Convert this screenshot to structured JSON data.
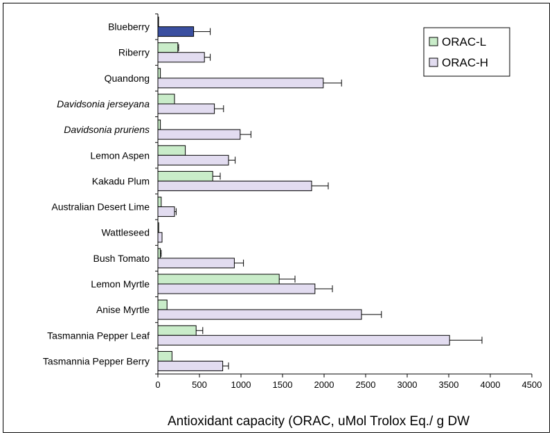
{
  "chart_data": {
    "type": "bar",
    "orientation": "horizontal",
    "categories": [
      "Blueberry",
      "Riberry",
      "Quandong",
      "Davidsonia jerseyana",
      "Davidsonia pruriens",
      "Lemon Aspen",
      "Kakadu Plum",
      "Australian Desert Lime",
      "Wattleseed",
      "Bush Tomato",
      "Lemon Myrtle",
      "Anise Myrtle",
      "Tasmannia Pepper Leaf",
      "Tasmannia Pepper Berry"
    ],
    "italic_categories": [
      "Davidsonia jerseyana",
      "Davidsonia pruriens"
    ],
    "series": [
      {
        "name": "ORAC-L",
        "color": "#c9ecc9",
        "values": [
          5,
          240,
          30,
          200,
          30,
          330,
          660,
          40,
          10,
          30,
          1460,
          110,
          460,
          170
        ],
        "errors": [
          0,
          10,
          0,
          0,
          0,
          0,
          90,
          0,
          0,
          10,
          190,
          0,
          80,
          0
        ]
      },
      {
        "name": "ORAC-H",
        "color": "#e2dcf0",
        "values": [
          430,
          560,
          1990,
          680,
          990,
          850,
          1850,
          200,
          50,
          920,
          1890,
          2450,
          3510,
          780
        ],
        "errors": [
          200,
          70,
          220,
          110,
          130,
          80,
          200,
          20,
          0,
          110,
          210,
          240,
          390,
          70
        ]
      }
    ],
    "highlight": {
      "category": "Blueberry",
      "series": "ORAC-H",
      "color": "#3a4fa0"
    },
    "xlim": [
      0,
      4500
    ],
    "xticks": [
      0,
      500,
      1000,
      1500,
      2000,
      2500,
      3000,
      3500,
      4000,
      4500
    ],
    "xlabel": "Antioxidant capacity (ORAC, uMol Trolox Eq./ g DW",
    "ylabel": "",
    "title": "",
    "grid": false,
    "legend_position": "top-right"
  }
}
